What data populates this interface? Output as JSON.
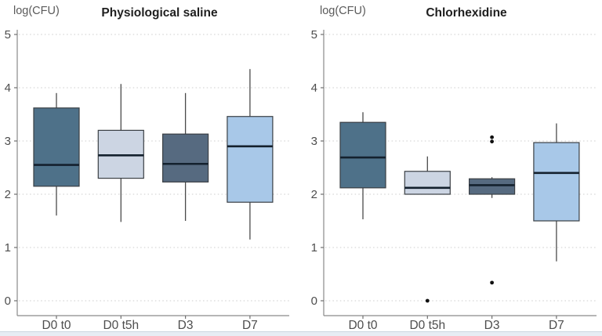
{
  "chart_data": {
    "type": "boxplot",
    "title": "",
    "ylabel": "log(CFU)",
    "ylim": [
      0,
      5
    ],
    "yticks": [
      0,
      1,
      2,
      3,
      4,
      5
    ],
    "grid": "horizontal-dotted",
    "legend": "none",
    "categories": [
      "D0 t0",
      "D0 t5h",
      "D3",
      "D7"
    ],
    "panels": [
      {
        "title": "Physiological saline",
        "boxes": [
          {
            "category": "D0 t0",
            "min": 1.6,
            "q1": 2.15,
            "median": 2.55,
            "q3": 3.62,
            "max": 3.9,
            "fill": "fill_d0t0",
            "outliers": []
          },
          {
            "category": "D0 t5h",
            "min": 1.48,
            "q1": 2.3,
            "median": 2.73,
            "q3": 3.2,
            "max": 4.07,
            "fill": "fill_d0t5h",
            "outliers": []
          },
          {
            "category": "D3",
            "min": 1.5,
            "q1": 2.23,
            "median": 2.57,
            "q3": 3.13,
            "max": 3.9,
            "fill": "fill_d3",
            "outliers": []
          },
          {
            "category": "D7",
            "min": 1.15,
            "q1": 1.85,
            "median": 2.9,
            "q3": 3.46,
            "max": 4.35,
            "fill": "fill_d7",
            "outliers": []
          }
        ]
      },
      {
        "title": "Chlorhexidine",
        "boxes": [
          {
            "category": "D0 t0",
            "min": 1.53,
            "q1": 2.12,
            "median": 2.69,
            "q3": 3.35,
            "max": 3.54,
            "fill": "fill_d0t0",
            "outliers": []
          },
          {
            "category": "D0 t5h",
            "min": 2.0,
            "q1": 2.0,
            "median": 2.12,
            "q3": 2.43,
            "max": 2.71,
            "fill": "fill_d0t5h",
            "outliers": [
              0.0
            ]
          },
          {
            "category": "D3",
            "min": 1.93,
            "q1": 2.0,
            "median": 2.17,
            "q3": 2.29,
            "max": 2.32,
            "fill": "fill_d3",
            "outliers": [
              3.07,
              2.99,
              0.34
            ]
          },
          {
            "category": "D7",
            "min": 0.74,
            "q1": 1.5,
            "median": 2.4,
            "q3": 2.97,
            "max": 3.33,
            "fill": "fill_d7",
            "outliers": []
          }
        ]
      }
    ],
    "colors": {
      "fill_d0t0": "#4e7189",
      "fill_d0t5h": "#ccd5e3",
      "fill_d3": "#566a80",
      "fill_d7": "#a8c8e8",
      "median_line": "#14212e",
      "box_border": "#3a3f44",
      "gridline": "#d6d6d6",
      "axis_line": "#8a8a8a",
      "tick_text": "#4d4d4d",
      "title_text": "#1f1f1f",
      "ylabel_text": "#5a5a5a",
      "outlier_dot": "#111111",
      "background": "#ffffff",
      "bottom_strip": "#e7edf4"
    }
  }
}
